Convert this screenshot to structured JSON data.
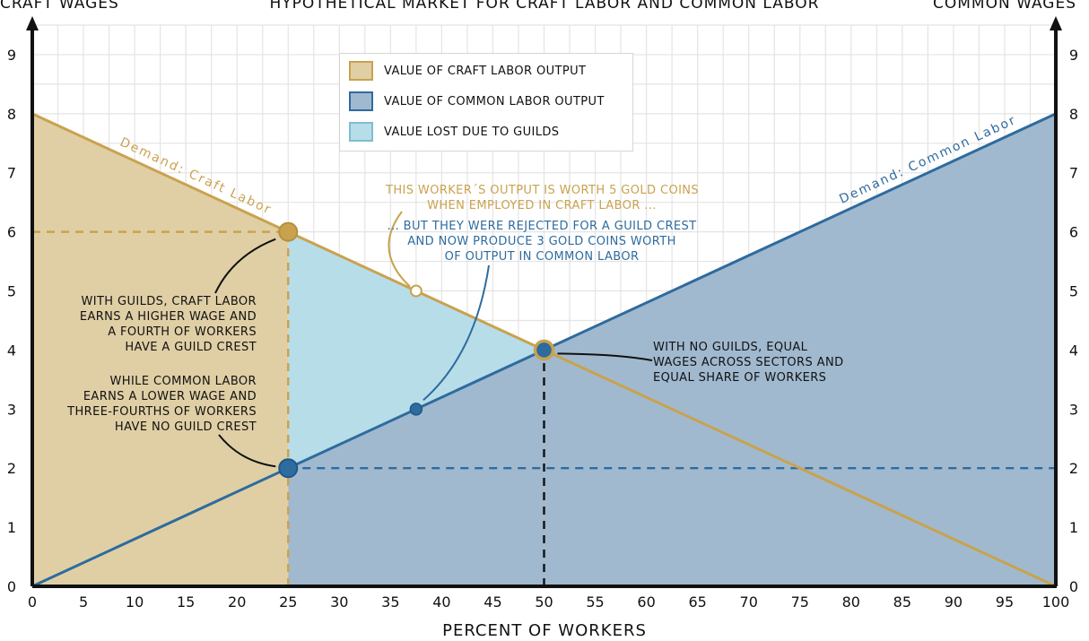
{
  "chart_data": {
    "type": "area",
    "title": "Hypothetical Market for Craft Labor and Common Labor",
    "y_left_label": "Craft Wages",
    "y_right_label": "Common Wages",
    "xlabel": "Percent of Workers",
    "xlim": [
      0,
      100
    ],
    "ylim": [
      0,
      9.5
    ],
    "x_ticks": [
      0,
      5,
      10,
      15,
      20,
      25,
      30,
      35,
      40,
      45,
      50,
      55,
      60,
      65,
      70,
      75,
      80,
      85,
      90,
      95,
      100
    ],
    "y_ticks": [
      0,
      1,
      2,
      3,
      4,
      5,
      6,
      7,
      8,
      9
    ],
    "grid": true,
    "legend_position": "top-center",
    "series": [
      {
        "name": "Demand: Craft Labor",
        "color": "#c9a24e",
        "x": [
          0,
          100
        ],
        "y": [
          8,
          0
        ]
      },
      {
        "name": "Demand: Common Labor",
        "color": "#2e6b9e",
        "x": [
          0,
          100
        ],
        "y": [
          0,
          8
        ]
      }
    ],
    "areas": [
      {
        "name": "Value of Craft Labor Output",
        "color": "#e0cfa5",
        "border": "#c9a24e"
      },
      {
        "name": "Value of Common Labor Output",
        "color": "#a0b9cf",
        "border": "#2e6b9e"
      },
      {
        "name": "Value Lost due to Guilds",
        "color": "#b7dde9",
        "border": "#7fbcd2"
      }
    ],
    "points": [
      {
        "x": 25,
        "y": 6,
        "kind": "craft-wage-with-guilds"
      },
      {
        "x": 25,
        "y": 2,
        "kind": "common-wage-with-guilds"
      },
      {
        "x": 50,
        "y": 4,
        "kind": "equilibrium-no-guilds"
      },
      {
        "x": 37.5,
        "y": 5,
        "kind": "worker-craft-value"
      },
      {
        "x": 37.5,
        "y": 3,
        "kind": "worker-common-value"
      }
    ],
    "reference_lines": [
      {
        "orientation": "horizontal",
        "y": 6,
        "x_from": 0,
        "x_to": 25,
        "color": "#c9a24e"
      },
      {
        "orientation": "vertical",
        "x": 25,
        "y_from": 0,
        "y_to": 6,
        "color": "#c9a24e"
      },
      {
        "orientation": "horizontal",
        "y": 2,
        "x_from": 25,
        "x_to": 100,
        "color": "#2e6b9e"
      },
      {
        "orientation": "vertical",
        "x": 50,
        "y_from": 0,
        "y_to": 4,
        "color": "#111111"
      }
    ],
    "annotations": {
      "craft_with_guilds": [
        "With guilds, craft labor",
        "earns a higher wage and",
        "a fourth of workers",
        "have a guild crest"
      ],
      "common_with_guilds": [
        "While common labor",
        "earns a lower wage and",
        "three-fourths of workers",
        "have no guild crest"
      ],
      "no_guilds": [
        "With no guilds, equal",
        "wages across sectors and",
        "equal share of workers"
      ],
      "gold_worker": [
        "This worker´s output is worth 5 gold coins",
        "when employed in craft labor ..."
      ],
      "rejected_worker": [
        "... but they were rejected for a guild crest",
        "and now produce 3 gold coins worth",
        "of output in common labor"
      ]
    }
  }
}
